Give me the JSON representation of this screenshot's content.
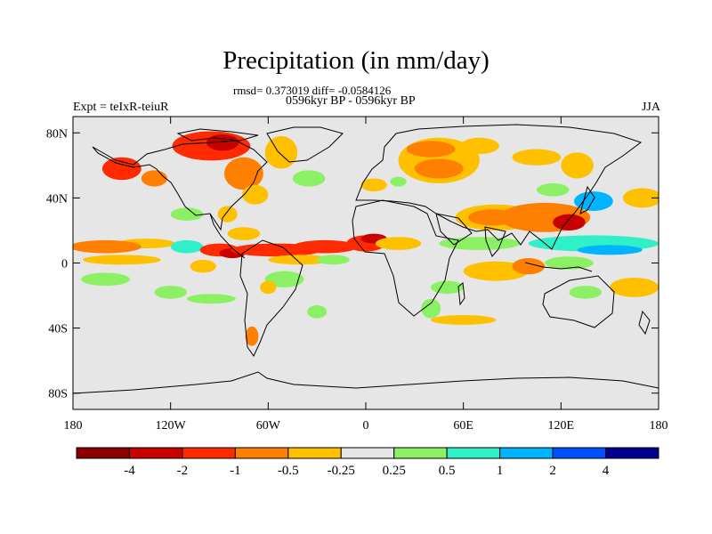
{
  "chart_data": {
    "type": "heatmap",
    "title": "Precipitation (in mm/day)",
    "stats": "rmsd= 0.373019 diff= -0.0584126",
    "period": "0596kyr BP - 0596kyr BP",
    "expt_label": "Expt = teIxR-teiuR",
    "season": "JJA",
    "x_ticks": [
      "180",
      "120W",
      "60W",
      "0",
      "60E",
      "120E",
      "180"
    ],
    "x_tick_values": [
      -180,
      -120,
      -60,
      0,
      60,
      120,
      180
    ],
    "y_ticks": [
      "80N",
      "40N",
      "0",
      "40S",
      "80S"
    ],
    "y_tick_values": [
      80,
      40,
      0,
      -40,
      -80
    ],
    "xlim": [
      -180,
      180
    ],
    "ylim": [
      -90,
      90
    ],
    "colorbar": {
      "labels": [
        "-4",
        "-2",
        "-1",
        "-0.5",
        "-0.25",
        "0.25",
        "0.5",
        "1",
        "2",
        "4"
      ],
      "colors": [
        "#8a0000",
        "#c80000",
        "#ff2a00",
        "#ff8000",
        "#ffc000",
        "#e6e6e6",
        "#8cf064",
        "#30f0c8",
        "#00b4ff",
        "#0050ff",
        "#000090"
      ]
    },
    "background_color": "#e6e6e6",
    "anomaly_regions": [
      {
        "lon": -150,
        "lat": 58,
        "rx": 12,
        "ry": 7,
        "level": 2
      },
      {
        "lon": -130,
        "lat": 52,
        "rx": 8,
        "ry": 5,
        "level": 3
      },
      {
        "lon": -95,
        "lat": 72,
        "rx": 24,
        "ry": 9,
        "level": 2
      },
      {
        "lon": -88,
        "lat": 74,
        "rx": 10,
        "ry": 5,
        "level": 1
      },
      {
        "lon": -75,
        "lat": 55,
        "rx": 12,
        "ry": 10,
        "level": 3
      },
      {
        "lon": -68,
        "lat": 42,
        "rx": 8,
        "ry": 6,
        "level": 4
      },
      {
        "lon": -52,
        "lat": 68,
        "rx": 10,
        "ry": 10,
        "level": 4
      },
      {
        "lon": -35,
        "lat": 52,
        "rx": 10,
        "ry": 5,
        "level": 6
      },
      {
        "lon": -110,
        "lat": 30,
        "rx": 10,
        "ry": 4,
        "level": 6
      },
      {
        "lon": -85,
        "lat": 30,
        "rx": 6,
        "ry": 5,
        "level": 4
      },
      {
        "lon": -75,
        "lat": 18,
        "rx": 10,
        "ry": 4,
        "level": 4
      },
      {
        "lon": -135,
        "lat": 12,
        "rx": 18,
        "ry": 3,
        "level": 4
      },
      {
        "lon": -160,
        "lat": 10,
        "rx": 22,
        "ry": 4,
        "level": 3
      },
      {
        "lon": -110,
        "lat": 10,
        "rx": 10,
        "ry": 4,
        "level": 7
      },
      {
        "lon": -90,
        "lat": 8,
        "rx": 12,
        "ry": 4,
        "level": 2
      },
      {
        "lon": -82,
        "lat": 6,
        "rx": 8,
        "ry": 3,
        "level": 1
      },
      {
        "lon": -55,
        "lat": 8,
        "rx": 28,
        "ry": 4,
        "level": 2
      },
      {
        "lon": -25,
        "lat": 10,
        "rx": 20,
        "ry": 4,
        "level": 2
      },
      {
        "lon": 0,
        "lat": 12,
        "rx": 12,
        "ry": 5,
        "level": 2
      },
      {
        "lon": 5,
        "lat": 15,
        "rx": 8,
        "ry": 3,
        "level": 1
      },
      {
        "lon": 20,
        "lat": 12,
        "rx": 14,
        "ry": 4,
        "level": 4
      },
      {
        "lon": -40,
        "lat": 2,
        "rx": 20,
        "ry": 3,
        "level": 4
      },
      {
        "lon": -20,
        "lat": 2,
        "rx": 10,
        "ry": 3,
        "level": 6
      },
      {
        "lon": -150,
        "lat": 2,
        "rx": 24,
        "ry": 3,
        "level": 4
      },
      {
        "lon": -100,
        "lat": -2,
        "rx": 8,
        "ry": 4,
        "level": 4
      },
      {
        "lon": -160,
        "lat": -10,
        "rx": 15,
        "ry": 4,
        "level": 6
      },
      {
        "lon": -120,
        "lat": -18,
        "rx": 10,
        "ry": 4,
        "level": 6
      },
      {
        "lon": -95,
        "lat": -22,
        "rx": 15,
        "ry": 3,
        "level": 6
      },
      {
        "lon": -50,
        "lat": -10,
        "rx": 12,
        "ry": 5,
        "level": 6
      },
      {
        "lon": -60,
        "lat": -15,
        "rx": 5,
        "ry": 4,
        "level": 4
      },
      {
        "lon": -70,
        "lat": -45,
        "rx": 4,
        "ry": 6,
        "level": 3
      },
      {
        "lon": -30,
        "lat": -30,
        "rx": 6,
        "ry": 4,
        "level": 6
      },
      {
        "lon": 45,
        "lat": 63,
        "rx": 25,
        "ry": 14,
        "level": 4
      },
      {
        "lon": 45,
        "lat": 58,
        "rx": 15,
        "ry": 6,
        "level": 3
      },
      {
        "lon": 40,
        "lat": 70,
        "rx": 15,
        "ry": 5,
        "level": 3
      },
      {
        "lon": 70,
        "lat": 72,
        "rx": 12,
        "ry": 5,
        "level": 4
      },
      {
        "lon": 105,
        "lat": 65,
        "rx": 15,
        "ry": 5,
        "level": 4
      },
      {
        "lon": 130,
        "lat": 60,
        "rx": 10,
        "ry": 8,
        "level": 4
      },
      {
        "lon": 5,
        "lat": 48,
        "rx": 8,
        "ry": 4,
        "level": 4
      },
      {
        "lon": 20,
        "lat": 50,
        "rx": 5,
        "ry": 3,
        "level": 6
      },
      {
        "lon": 80,
        "lat": 28,
        "rx": 25,
        "ry": 8,
        "level": 4
      },
      {
        "lon": 78,
        "lat": 28,
        "rx": 15,
        "ry": 5,
        "level": 3
      },
      {
        "lon": 110,
        "lat": 28,
        "rx": 28,
        "ry": 9,
        "level": 3
      },
      {
        "lon": 125,
        "lat": 25,
        "rx": 10,
        "ry": 5,
        "level": 1
      },
      {
        "lon": 140,
        "lat": 38,
        "rx": 12,
        "ry": 6,
        "level": 8
      },
      {
        "lon": 170,
        "lat": 40,
        "rx": 12,
        "ry": 6,
        "level": 4
      },
      {
        "lon": 115,
        "lat": 45,
        "rx": 10,
        "ry": 4,
        "level": 6
      },
      {
        "lon": 70,
        "lat": 12,
        "rx": 25,
        "ry": 4,
        "level": 6
      },
      {
        "lon": 140,
        "lat": 12,
        "rx": 40,
        "ry": 5,
        "level": 7
      },
      {
        "lon": 150,
        "lat": 8,
        "rx": 20,
        "ry": 3,
        "level": 8
      },
      {
        "lon": 80,
        "lat": -5,
        "rx": 20,
        "ry": 6,
        "level": 4
      },
      {
        "lon": 100,
        "lat": -2,
        "rx": 10,
        "ry": 5,
        "level": 3
      },
      {
        "lon": 125,
        "lat": 0,
        "rx": 15,
        "ry": 4,
        "level": 6
      },
      {
        "lon": 165,
        "lat": -15,
        "rx": 15,
        "ry": 6,
        "level": 4
      },
      {
        "lon": 135,
        "lat": -18,
        "rx": 10,
        "ry": 4,
        "level": 6
      },
      {
        "lon": 50,
        "lat": -15,
        "rx": 10,
        "ry": 4,
        "level": 6
      },
      {
        "lon": 40,
        "lat": -28,
        "rx": 6,
        "ry": 6,
        "level": 6
      },
      {
        "lon": 60,
        "lat": -35,
        "rx": 20,
        "ry": 3,
        "level": 4
      }
    ]
  }
}
